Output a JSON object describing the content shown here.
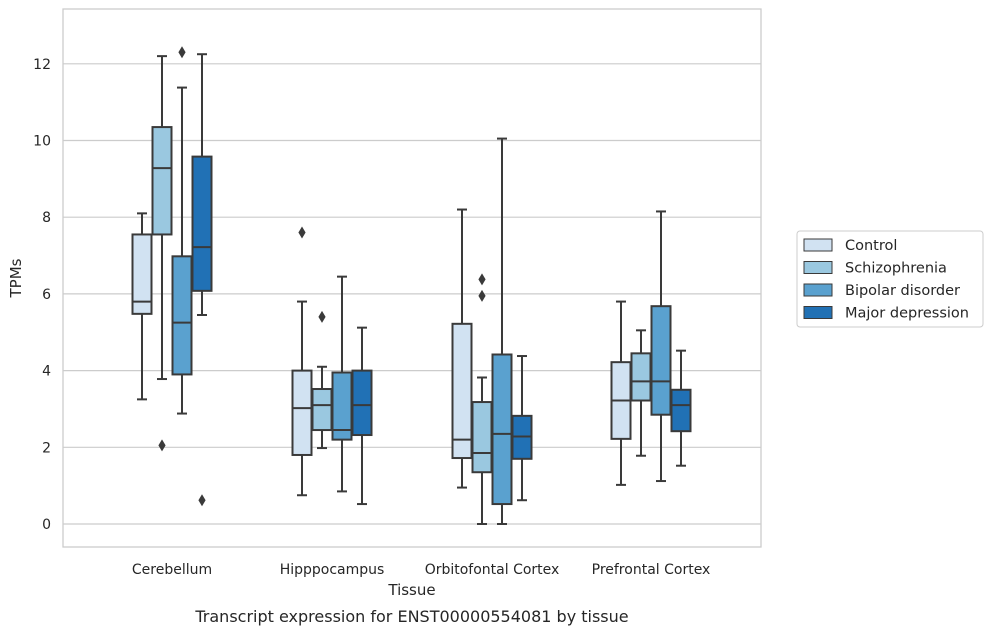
{
  "chart_data": {
    "type": "box",
    "title": "",
    "caption": "Transcript expression for ENST00000554081 by tissue",
    "xlabel": "Tissue",
    "ylabel": "TPMs",
    "ylim": [
      -0.6,
      13.5
    ],
    "yticks": [
      0,
      2,
      4,
      6,
      8,
      10,
      12
    ],
    "grid": "horizontal",
    "legend_position": "right",
    "categories": [
      "Cerebellum",
      "Hipppocampus",
      "Orbitofontal Cortex",
      "Prefrontal Cortex"
    ],
    "series": [
      {
        "name": "Control",
        "color": "#d1e2f2",
        "boxes": [
          {
            "whislo": 3.25,
            "q1": 5.48,
            "med": 5.8,
            "q3": 7.55,
            "whishi": 8.1,
            "fliers": []
          },
          {
            "whislo": 0.75,
            "q1": 1.8,
            "med": 3.02,
            "q3": 4.0,
            "whishi": 5.8,
            "fliers": [
              7.6
            ]
          },
          {
            "whislo": 0.95,
            "q1": 1.72,
            "med": 2.2,
            "q3": 5.22,
            "whishi": 8.2,
            "fliers": []
          },
          {
            "whislo": 1.02,
            "q1": 2.22,
            "med": 3.22,
            "q3": 4.22,
            "whishi": 5.8,
            "fliers": []
          }
        ]
      },
      {
        "name": "Schizophrenia",
        "color": "#9ac8e0",
        "boxes": [
          {
            "whislo": 3.78,
            "q1": 7.55,
            "med": 9.28,
            "q3": 10.35,
            "whishi": 12.2,
            "fliers": [
              2.05
            ]
          },
          {
            "whislo": 1.98,
            "q1": 2.45,
            "med": 3.1,
            "q3": 3.52,
            "whishi": 4.1,
            "fliers": [
              5.4
            ]
          },
          {
            "whislo": 0.0,
            "q1": 1.35,
            "med": 1.85,
            "q3": 3.18,
            "whishi": 3.82,
            "fliers": [
              5.95,
              6.38
            ]
          },
          {
            "whislo": 1.78,
            "q1": 3.22,
            "med": 3.72,
            "q3": 4.45,
            "whishi": 5.05,
            "fliers": []
          }
        ]
      },
      {
        "name": "Bipolar disorder",
        "color": "#5aa1cf",
        "boxes": [
          {
            "whislo": 2.88,
            "q1": 3.9,
            "med": 5.25,
            "q3": 6.98,
            "whishi": 11.38,
            "fliers": [
              12.3
            ]
          },
          {
            "whislo": 0.85,
            "q1": 2.2,
            "med": 2.45,
            "q3": 3.95,
            "whishi": 6.45,
            "fliers": []
          },
          {
            "whislo": 0.0,
            "q1": 0.52,
            "med": 2.35,
            "q3": 4.42,
            "whishi": 10.05,
            "fliers": []
          },
          {
            "whislo": 1.12,
            "q1": 2.85,
            "med": 3.72,
            "q3": 5.68,
            "whishi": 8.15,
            "fliers": []
          }
        ]
      },
      {
        "name": "Major depression",
        "color": "#2171b5",
        "boxes": [
          {
            "whislo": 5.45,
            "q1": 6.08,
            "med": 7.22,
            "q3": 9.58,
            "whishi": 12.25,
            "fliers": [
              0.62
            ]
          },
          {
            "whislo": 0.52,
            "q1": 2.32,
            "med": 3.1,
            "q3": 4.0,
            "whishi": 5.12,
            "fliers": []
          },
          {
            "whislo": 0.62,
            "q1": 1.7,
            "med": 2.28,
            "q3": 2.82,
            "whishi": 4.38,
            "fliers": []
          },
          {
            "whislo": 1.52,
            "q1": 2.42,
            "med": 3.1,
            "q3": 3.5,
            "whishi": 4.52,
            "fliers": []
          }
        ]
      }
    ]
  }
}
